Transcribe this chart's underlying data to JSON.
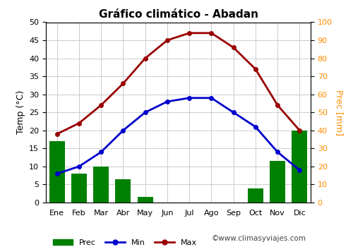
{
  "title": "Gráfico climático - Abadan",
  "months": [
    "Ene",
    "Feb",
    "Mar",
    "Abr",
    "May",
    "Jun",
    "Jul",
    "Ago",
    "Sep",
    "Oct",
    "Nov",
    "Dic"
  ],
  "temp_max": [
    19,
    22,
    27,
    33,
    40,
    45,
    47,
    47,
    43,
    37,
    27,
    20
  ],
  "temp_min": [
    8,
    10,
    14,
    20,
    25,
    28,
    29,
    29,
    25,
    21,
    14,
    9
  ],
  "precipitation": [
    17,
    8,
    10,
    6.5,
    1.5,
    0,
    0,
    0,
    0,
    4,
    11.5,
    20
  ],
  "bar_color": "#008000",
  "line_min_color": "#0000CC",
  "line_max_color": "#990000",
  "left_ylabel": "Temp (°C)",
  "right_ylabel": "Prec [mm]",
  "left_ylim": [
    0,
    50
  ],
  "right_ylim": [
    0,
    100
  ],
  "left_yticks": [
    0,
    5,
    10,
    15,
    20,
    25,
    30,
    35,
    40,
    45,
    50
  ],
  "right_yticks": [
    0,
    10,
    20,
    30,
    40,
    50,
    60,
    70,
    80,
    90,
    100
  ],
  "bg_color": "#ffffff",
  "grid_color": "#cccccc",
  "watermark": "©www.climasyviajes.com",
  "legend_labels": [
    "Prec",
    "Min",
    "Max"
  ]
}
